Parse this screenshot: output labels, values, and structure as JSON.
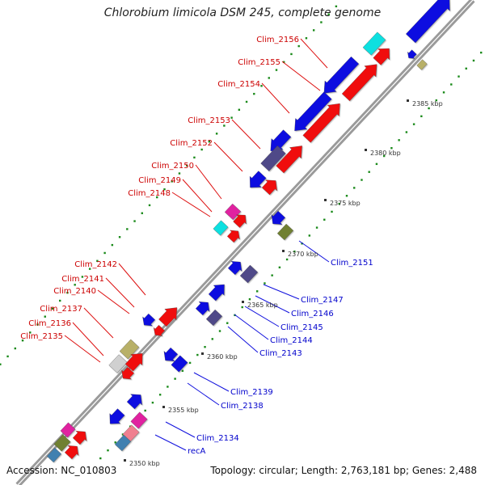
{
  "title": "Chlorobium limicola DSM 245, complete genome",
  "footer": {
    "accession": "Accession: NC_010803",
    "topology": "Topology: circular; Length: 2,763,181 bp; Genes: 2,488"
  },
  "kbp_ticks": [
    {
      "label": "2350 kbp",
      "name": "tick-2350"
    },
    {
      "label": "2355 kbp",
      "name": "tick-2355"
    },
    {
      "label": "2360 kbp",
      "name": "tick-2360"
    },
    {
      "label": "2365 kbp",
      "name": "tick-2365"
    },
    {
      "label": "2370 kbp",
      "name": "tick-2370"
    },
    {
      "label": "2375 kbp",
      "name": "tick-2375"
    },
    {
      "label": "2380 kbp",
      "name": "tick-2380"
    },
    {
      "label": "2385 kbp",
      "name": "tick-2385"
    }
  ],
  "gene_labels_red": [
    "Clim_2156",
    "Clim_2155",
    "Clim_2154",
    "Clim_2153",
    "Clim_2152",
    "Clim_2150",
    "Clim_2149",
    "Clim_2148",
    "Clim_2142",
    "Clim_2141",
    "Clim_2140",
    "Clim_2137",
    "Clim_2136",
    "Clim_2135"
  ],
  "gene_labels_blue": [
    "Clim_2151",
    "Clim_2147",
    "Clim_2146",
    "Clim_2145",
    "Clim_2144",
    "Clim_2143",
    "Clim_2139",
    "Clim_2138",
    "Clim_2134",
    "recA"
  ],
  "colors": {
    "red": "#f01010",
    "blue": "#1010e0",
    "cyan": "#10e0e0",
    "magenta": "#e020a0",
    "slate": "#504888",
    "olive": "#b8b068",
    "gray": "#d0d0d0",
    "steel": "#4080b0",
    "green_olive": "#708030",
    "pink": "#f08090",
    "backbone": "#888888",
    "tick_green": "#1a8a1a",
    "label_red": "#cc0000",
    "label_blue": "#0000cc"
  }
}
